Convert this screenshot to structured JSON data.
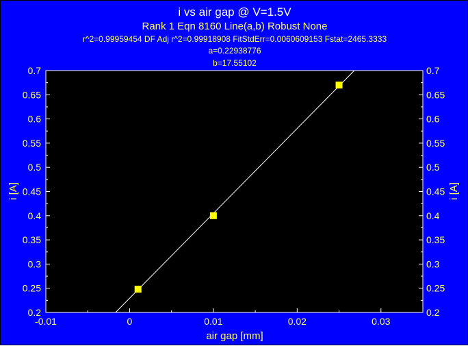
{
  "colors": {
    "background": "#0000ff",
    "plot_area": "#000000",
    "text": "#ffff66",
    "title": "#ffffff",
    "axis": "#ffffff",
    "fit_line": "#ffffff",
    "marker": "#ffff00"
  },
  "chart_data": {
    "type": "scatter",
    "title": "i vs air gap @ V=1.5V",
    "subtitle": "Rank 1  Eqn 8160  Line(a,b) Robust None",
    "stats_line": "r^2=0.99959454  DF Adj r^2=0.99918908  FitStdErr=0.0060609153  Fstat=2465.3333",
    "param_a": "a=0.22938776",
    "param_b": "b=17.55102",
    "xlabel": "air gap [mm]",
    "ylabel_left": "i [A]",
    "ylabel_right": "i [A]",
    "xlim": [
      -0.01,
      0.035
    ],
    "ylim": [
      0.2,
      0.7
    ],
    "x_ticks": [
      -0.01,
      0,
      0.01,
      0.02,
      0.03
    ],
    "x_tick_labels": [
      "-0.01",
      "0",
      "0.01",
      "0.02",
      "0.03"
    ],
    "y_ticks": [
      0.2,
      0.25,
      0.3,
      0.35,
      0.4,
      0.45,
      0.5,
      0.55,
      0.6,
      0.65,
      0.7
    ],
    "y_tick_labels": [
      "0.2",
      "0.25",
      "0.3",
      "0.35",
      "0.4",
      "0.45",
      "0.5",
      "0.55",
      "0.6",
      "0.65",
      "0.7"
    ],
    "grid": false,
    "series": [
      {
        "x": [
          0.001,
          0.01,
          0.025
        ],
        "y": [
          0.248,
          0.4,
          0.67
        ]
      }
    ],
    "fit": {
      "type": "line",
      "a": 0.22938776,
      "b": 17.55102
    }
  }
}
